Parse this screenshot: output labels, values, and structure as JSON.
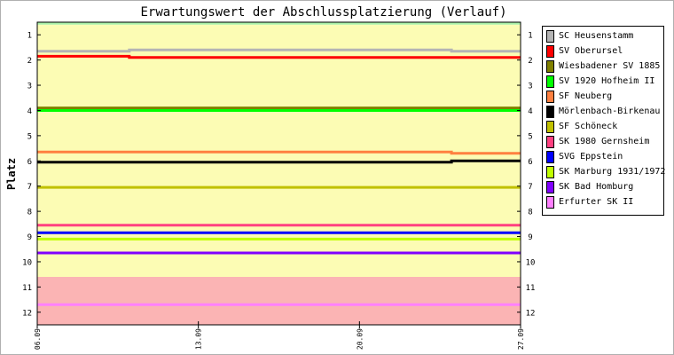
{
  "chart_data": {
    "type": "line",
    "title": "Erwartungswert der Abschlussplatzierung (Verlauf)",
    "ylabel": "Platz",
    "xlabel": "",
    "x_ticks": [
      "06.09",
      "13.09",
      "20.09",
      "27.09"
    ],
    "y_ticks": [
      1,
      2,
      3,
      4,
      5,
      6,
      7,
      8,
      9,
      10,
      11,
      12
    ],
    "ylim": [
      0.5,
      12.5
    ],
    "y_inverted": true,
    "grid": false,
    "legend_position": "right",
    "zones": [
      {
        "from": 0.5,
        "to": 0.6,
        "color": "#a8f0a8"
      },
      {
        "from": 0.6,
        "to": 10.6,
        "color": "#fcfcb4"
      },
      {
        "from": 10.6,
        "to": 12.5,
        "color": "#fbb4b4"
      }
    ],
    "series": [
      {
        "name": "SC Heusenstamm",
        "color": "#b4b4b4",
        "points": [
          [
            "06.09",
            1.65
          ],
          [
            "10.09",
            1.65
          ],
          [
            "10.09",
            1.6
          ],
          [
            "24.09",
            1.6
          ],
          [
            "24.09",
            1.65
          ],
          [
            "27.09",
            1.65
          ]
        ]
      },
      {
        "name": "SV Oberursel",
        "color": "#ff0000",
        "points": [
          [
            "06.09",
            1.85
          ],
          [
            "10.09",
            1.85
          ],
          [
            "10.09",
            1.9
          ],
          [
            "27.09",
            1.9
          ]
        ]
      },
      {
        "name": "Wiesbadener SV 1885",
        "color": "#808000",
        "points": [
          [
            "06.09",
            3.9
          ],
          [
            "27.09",
            3.9
          ]
        ]
      },
      {
        "name": "SV 1920 Hofheim II",
        "color": "#00ff00",
        "points": [
          [
            "06.09",
            4.0
          ],
          [
            "27.09",
            4.0
          ]
        ]
      },
      {
        "name": "SF Neuberg",
        "color": "#ff8040",
        "points": [
          [
            "06.09",
            5.65
          ],
          [
            "24.09",
            5.65
          ],
          [
            "24.09",
            5.7
          ],
          [
            "27.09",
            5.7
          ]
        ]
      },
      {
        "name": "Mörlenbach-Birkenau",
        "color": "#000000",
        "points": [
          [
            "06.09",
            6.05
          ],
          [
            "24.09",
            6.05
          ],
          [
            "24.09",
            6.0
          ],
          [
            "27.09",
            6.0
          ]
        ]
      },
      {
        "name": "SF Schöneck",
        "color": "#c0c000",
        "points": [
          [
            "06.09",
            7.05
          ],
          [
            "27.09",
            7.05
          ]
        ]
      },
      {
        "name": "SK 1980 Gernsheim",
        "color": "#ff4080",
        "points": [
          [
            "06.09",
            8.55
          ],
          [
            "27.09",
            8.55
          ]
        ]
      },
      {
        "name": "SVG Eppstein",
        "color": "#0000ff",
        "points": [
          [
            "06.09",
            8.85
          ],
          [
            "27.09",
            8.85
          ]
        ]
      },
      {
        "name": "SK Marburg 1931/1972",
        "color": "#c0ff00",
        "points": [
          [
            "06.09",
            9.1
          ],
          [
            "27.09",
            9.1
          ]
        ]
      },
      {
        "name": "SK Bad Homburg",
        "color": "#8000ff",
        "points": [
          [
            "06.09",
            9.65
          ],
          [
            "27.09",
            9.65
          ]
        ]
      },
      {
        "name": "Erfurter SK II",
        "color": "#ff80ff",
        "points": [
          [
            "06.09",
            11.7
          ],
          [
            "27.09",
            11.7
          ]
        ]
      }
    ]
  }
}
